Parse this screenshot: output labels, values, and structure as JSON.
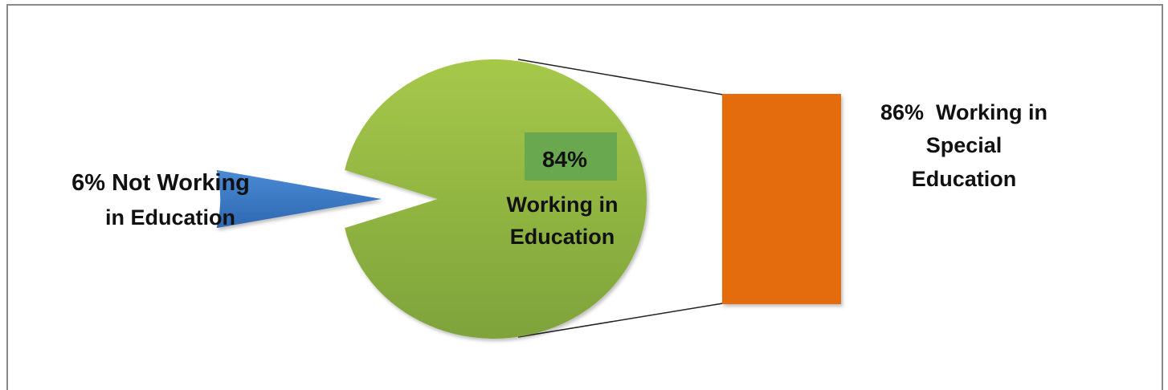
{
  "chart_data": {
    "type": "bar-of-pie",
    "pie": {
      "slices": [
        {
          "label_lines": [
            "84%",
            "Working in",
            "Education"
          ],
          "value": 84,
          "color": "#8fbd3a",
          "exploded": false
        },
        {
          "label_lines": [
            "6% Not Working",
            "in Education"
          ],
          "value": 6,
          "color": "#3f7dc7",
          "exploded": true
        }
      ],
      "highlight_color": "#6aa84f"
    },
    "bar": {
      "label_lines": [
        "86%  Working in",
        "Special",
        "Education"
      ],
      "value": 86,
      "color": "#e46c0a"
    },
    "title": "",
    "legend": "none"
  }
}
